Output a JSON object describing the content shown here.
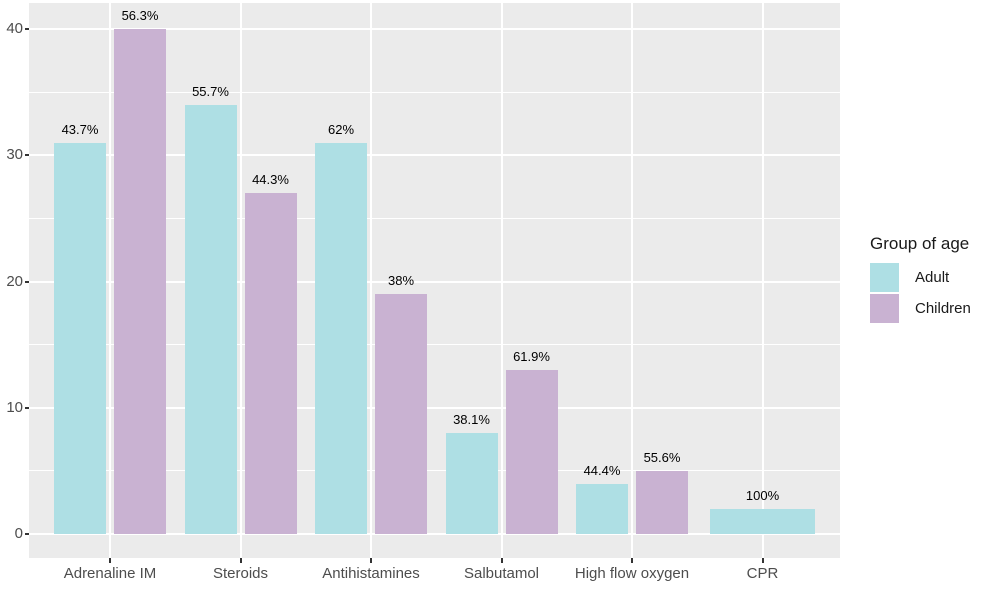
{
  "chart_data": {
    "type": "bar",
    "title": "",
    "categories": [
      "Adrenaline IM",
      "Steroids",
      "Antihistamines",
      "Salbutamol",
      "High flow oxygen",
      "CPR"
    ],
    "series": [
      {
        "name": "Adult",
        "color": "#aedfe4",
        "values": [
          31,
          34,
          31,
          8,
          4,
          2
        ],
        "labels": [
          "43.7%",
          "55.7%",
          "62%",
          "38.1%",
          "44.4%",
          "100%"
        ]
      },
      {
        "name": "Children",
        "color": "#c9b2d2",
        "values": [
          40,
          27,
          19,
          13,
          5,
          null
        ],
        "labels": [
          "56.3%",
          "44.3%",
          "38%",
          "61.9%",
          "55.6%",
          null
        ]
      }
    ],
    "xlabel": "",
    "ylabel": "",
    "y_axis": {
      "ticks": [
        0,
        10,
        20,
        30,
        40
      ],
      "minor_ticks": [
        5,
        15,
        25,
        35
      ],
      "lim": [
        0,
        40
      ]
    },
    "legend": {
      "title": "Group of age",
      "position": "right"
    },
    "style": {
      "panel_bg": "#ebebeb",
      "grid_color": "#ffffff",
      "axis_text_color": "#4d4d4d",
      "tick_color": "#333333",
      "label_color": "#000000",
      "grid": "on"
    }
  }
}
